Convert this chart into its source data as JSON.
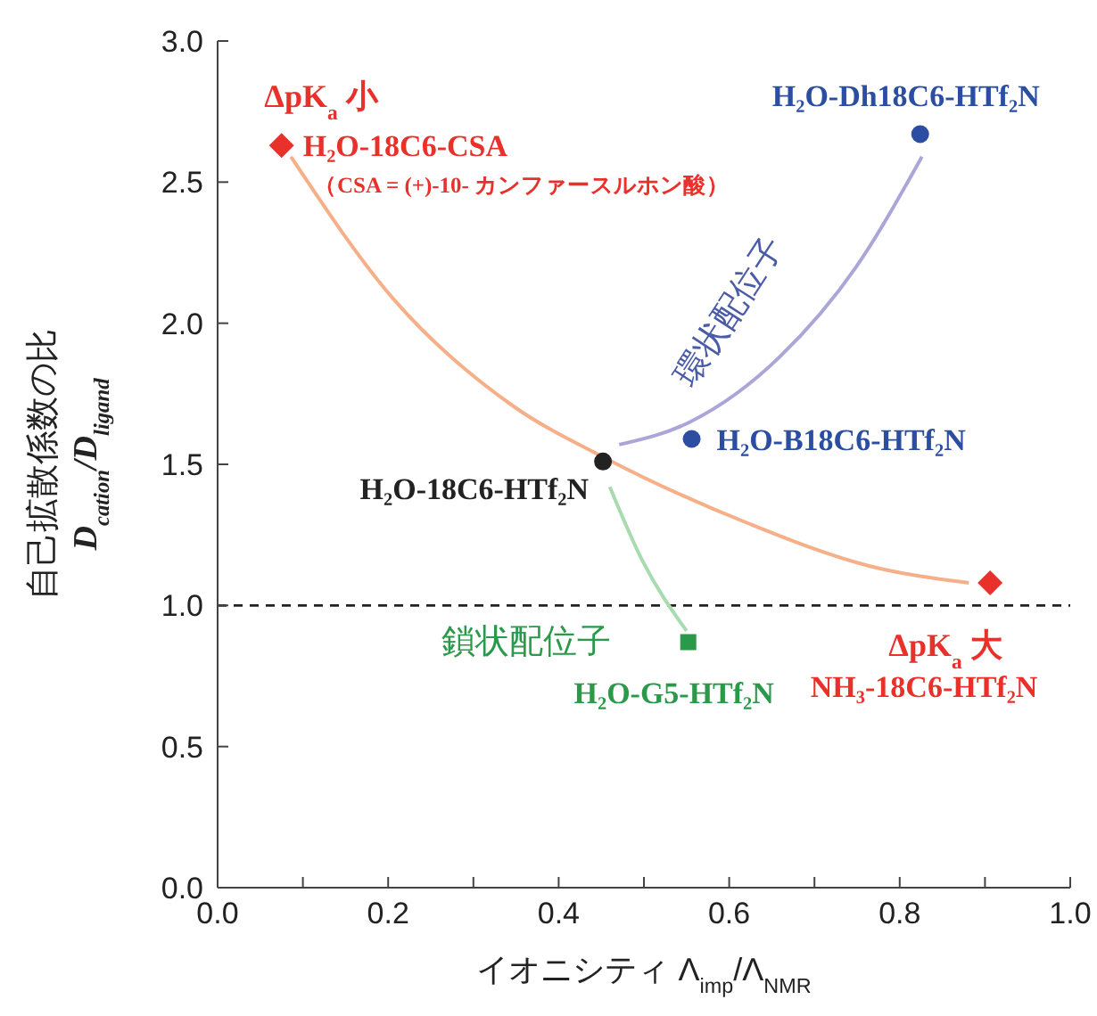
{
  "chart_data": {
    "type": "scatter",
    "xlabel": "イオニシティ Λ$_{imp}$/Λ$_{NMR}$",
    "ylabel": "自己拡散係数の比\nD$_{cation}$/D$_{ligand}$",
    "xlim": [
      0,
      1
    ],
    "xticks": [
      {
        "value": 0,
        "label": "0.0"
      },
      {
        "value": 0.1,
        "label": null
      },
      {
        "value": 0.2,
        "label": "0.2"
      },
      {
        "value": 0.3,
        "label": null
      },
      {
        "value": 0.4,
        "label": "0.4"
      },
      {
        "value": 0.5,
        "label": null
      },
      {
        "value": 0.6,
        "label": "0.6"
      },
      {
        "value": 0.7,
        "label": null
      },
      {
        "value": 0.8,
        "label": "0.8"
      },
      {
        "value": 0.9,
        "label": null
      },
      {
        "value": 1,
        "label": "1.0"
      }
    ],
    "ylim": [
      0,
      3
    ],
    "yticks": [
      {
        "value": 0,
        "label": "0.0"
      },
      {
        "value": 0.5,
        "label": "0.5"
      },
      {
        "value": 1,
        "label": "1.0"
      },
      {
        "value": 1.5,
        "label": "1.5"
      },
      {
        "value": 2,
        "label": "2.0"
      },
      {
        "value": 2.5,
        "label": "2.5"
      },
      {
        "value": 3,
        "label": "3.0"
      }
    ],
    "grid": false,
    "legend": false,
    "ref_lines": [
      {
        "axis": "y",
        "value": 1,
        "color": "#222222",
        "line_style": "dashed"
      }
    ],
    "series": [
      {
        "type": "line",
        "color": "#f5b08a",
        "x": [
          0.086,
          0.205,
          0.345,
          0.456,
          0.623,
          0.764,
          0.881
        ],
        "values": [
          2.59,
          2.09,
          1.71,
          1.52,
          1.29,
          1.14,
          1.08
        ]
      },
      {
        "type": "line",
        "color": "#aaa7d8",
        "x": [
          0.471,
          0.554,
          0.659,
          0.749,
          0.826
        ],
        "values": [
          1.57,
          1.65,
          1.88,
          2.2,
          2.59
        ]
      },
      {
        "type": "line",
        "color": "#a8dcb0",
        "x": [
          0.46,
          0.498,
          0.55
        ],
        "values": [
          1.42,
          1.16,
          0.91
        ]
      },
      {
        "type": "scatter",
        "name": "H₂O-18C6-CSA",
        "color": "#e8312b",
        "marker": "diamond",
        "x": [
          0.075
        ],
        "values": [
          2.63
        ]
      },
      {
        "type": "scatter",
        "name": "H₂O-Dh18C6-HTf₂N",
        "color": "#2b4ea2",
        "marker": "circle",
        "x": [
          0.824
        ],
        "values": [
          2.67
        ]
      },
      {
        "type": "scatter",
        "name": "H₂O-B18C6-HTf₂N",
        "color": "#2b4ea2",
        "marker": "circle",
        "x": [
          0.556
        ],
        "values": [
          1.59
        ]
      },
      {
        "type": "scatter",
        "name": "H₂O-18C6-HTf₂N",
        "color": "#222222",
        "marker": "circle",
        "x": [
          0.452
        ],
        "values": [
          1.51
        ]
      },
      {
        "type": "scatter",
        "name": "H₂O-G5-HTf₂N",
        "color": "#2a9a4a",
        "marker": "square",
        "x": [
          0.552
        ],
        "values": [
          0.87
        ]
      },
      {
        "type": "scatter",
        "name": "NH₃-18C6-HTf₂N",
        "color": "#e8312b",
        "marker": "diamond",
        "x": [
          0.906
        ],
        "values": [
          1.08
        ]
      }
    ],
    "annotations": [
      "ΔpK$_{a}$ 小",
      "（CSA = (+)-10- カンファースルホン酸）",
      "環状配位子",
      "鎖状配位子",
      "ΔpK$_{a}$ 大"
    ]
  }
}
